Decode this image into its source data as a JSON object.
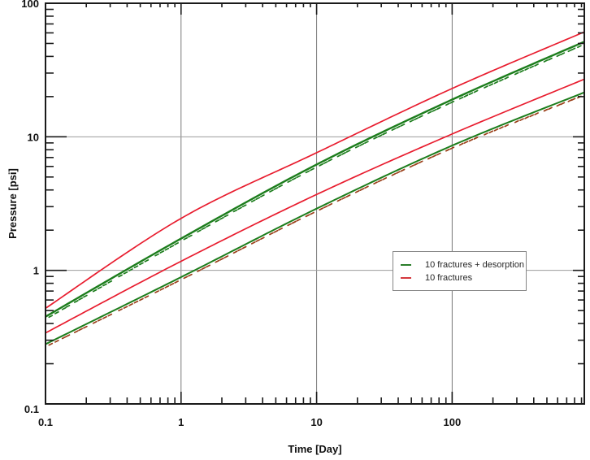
{
  "chart_data": {
    "type": "line",
    "title": "",
    "xlabel": "Time [Day]",
    "ylabel": "Pressure [psi]",
    "x_scale": "log",
    "y_scale": "log",
    "xlim": [
      0.1,
      944
    ],
    "ylim": [
      0.1,
      100
    ],
    "x_ticks": {
      "values": [
        0.1,
        1,
        10,
        100
      ],
      "labels": [
        "0.1",
        "1",
        "10",
        "100"
      ]
    },
    "y_ticks": {
      "values": [
        0.1,
        1,
        10,
        100
      ],
      "labels": [
        "0.1",
        "1",
        "10",
        "100"
      ]
    },
    "grid": true,
    "grid_color_vertical": "#787878",
    "grid_color_horizontal": "#9c9c9c",
    "frame_color": "#1a1a1a",
    "legend_position": "center-right",
    "series": [
      {
        "name": "10 fractures - pressure",
        "legend_label": "10 fractures",
        "color": "#e81c2e",
        "line_width": 1.7,
        "marker": null,
        "t": [
          0.1,
          1,
          10,
          100,
          944
        ],
        "p": [
          0.52,
          2.45,
          7.6,
          23,
          61
        ]
      },
      {
        "name": "10 fractures + desorption - pressure",
        "legend_label": "10 fractures + desorption",
        "color": "#1c7d1c",
        "line_width": 2.4,
        "marker": {
          "color": "#1c7d1c"
        },
        "t": [
          0.1,
          1,
          10,
          100,
          944
        ],
        "p": [
          0.45,
          1.73,
          6.2,
          19,
          51.5
        ]
      },
      {
        "name": "10 fractures - pressure derivative",
        "legend_label": "10 fractures",
        "color": "#e81c2e",
        "line_width": 1.7,
        "marker": null,
        "t": [
          0.1,
          1,
          10,
          100,
          944
        ],
        "p": [
          0.34,
          1.17,
          3.7,
          10.5,
          27
        ]
      },
      {
        "name": "10 fractures + desorption - pressure derivative",
        "legend_label": "10 fractures + desorption",
        "color": "#1c7d1c",
        "line_width": 2.0,
        "marker": {
          "color": "#9a3e18"
        },
        "t": [
          0.1,
          1,
          10,
          100,
          944
        ],
        "p": [
          0.28,
          0.89,
          2.9,
          8.6,
          21.5
        ]
      }
    ]
  },
  "legend": {
    "items": [
      {
        "label": "10 fractures + desorption",
        "color": "#2a7e2a"
      },
      {
        "label": "10 fractures",
        "color": "#d4383e"
      }
    ]
  }
}
